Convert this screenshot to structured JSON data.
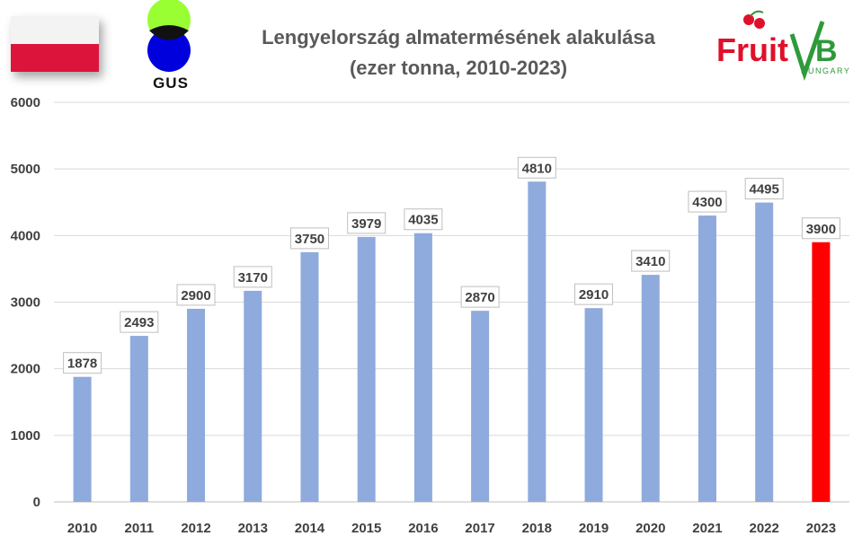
{
  "header": {
    "title_line1": "Lengyelország almatermésének alakulása",
    "title_line2": "(ezer tonna, 2010-2023)"
  },
  "logos": {
    "flag": "poland-flag",
    "gus_text": "GUS",
    "fruitveb_text": "FruitVeB",
    "fruitveb_sub": "HUNGARY"
  },
  "colors": {
    "bar": "#8faadc",
    "highlight": "#ff0000",
    "grid": "#d9d9d9",
    "text": "#404040"
  },
  "chart_data": {
    "type": "bar",
    "title": "Lengyelország almatermésének alakulása (ezer tonna, 2010-2023)",
    "xlabel": "",
    "ylabel": "",
    "ylim": [
      0,
      6000
    ],
    "yticks": [
      0,
      1000,
      2000,
      3000,
      4000,
      5000,
      6000
    ],
    "grid": true,
    "legend": "none",
    "categories": [
      "2010",
      "2011",
      "2012",
      "2013",
      "2014",
      "2015",
      "2016",
      "2017",
      "2018",
      "2019",
      "2020",
      "2021",
      "2022",
      "2023"
    ],
    "values": [
      1878,
      2493,
      2900,
      3170,
      3750,
      3979,
      4035,
      2870,
      4810,
      2910,
      3410,
      4300,
      4495,
      3900
    ],
    "highlight_category": "2023"
  }
}
